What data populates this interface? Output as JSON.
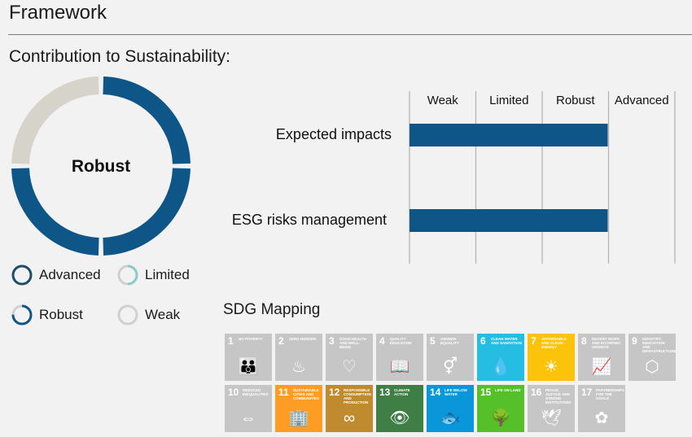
{
  "header": {
    "title": "Framework"
  },
  "contribution": {
    "title": "Contribution to Sustainability:",
    "center_label": "Robust",
    "filled_quarters": 3,
    "colors": {
      "filled": "#0e5588",
      "empty": "#d6d3cb"
    }
  },
  "legend": [
    {
      "label": "Advanced",
      "stroke": "#1f4e6b",
      "fill_fraction": 1.0
    },
    {
      "label": "Limited",
      "stroke": "#8ec9cc",
      "fill_fraction": 0.5
    },
    {
      "label": "Robust",
      "stroke": "#0e5588",
      "fill_fraction": 0.75
    },
    {
      "label": "Weak",
      "stroke": "#d6d3cb",
      "fill_fraction": 0.25
    }
  ],
  "chart_data": {
    "type": "bar",
    "orientation": "horizontal",
    "levels": [
      "Weak",
      "Limited",
      "Robust",
      "Advanced"
    ],
    "categories": [
      "Expected impacts",
      "ESG risks management"
    ],
    "values": [
      "Robust",
      "Robust"
    ],
    "bar_color": "#0e5588"
  },
  "sdg": {
    "title": "SDG Mapping",
    "tiles": [
      {
        "num": "1",
        "label": "No poverty",
        "icon": "👪",
        "color": "#c6c6c6"
      },
      {
        "num": "2",
        "label": "Zero hunger",
        "icon": "♨",
        "color": "#c6c6c6"
      },
      {
        "num": "3",
        "label": "Good health and well-being",
        "icon": "♡",
        "color": "#c6c6c6"
      },
      {
        "num": "4",
        "label": "Quality education",
        "icon": "📖",
        "color": "#c6c6c6"
      },
      {
        "num": "5",
        "label": "Gender equality",
        "icon": "⚥",
        "color": "#c6c6c6"
      },
      {
        "num": "6",
        "label": "Clean water and sanitation",
        "icon": "💧",
        "color": "#26bde2"
      },
      {
        "num": "7",
        "label": "Affordable and clean energy",
        "icon": "☀",
        "color": "#fcc30b"
      },
      {
        "num": "8",
        "label": "Decent work and economic growth",
        "icon": "📈",
        "color": "#c6c6c6"
      },
      {
        "num": "9",
        "label": "Industry, innovation and infrastructure",
        "icon": "⬡",
        "color": "#c6c6c6"
      },
      {
        "num": "10",
        "label": "Reduced inequalities",
        "icon": "⇔",
        "color": "#c6c6c6"
      },
      {
        "num": "11",
        "label": "Sustainable cities and communities",
        "icon": "🏢",
        "color": "#fd9d24"
      },
      {
        "num": "12",
        "label": "Responsible consumption and production",
        "icon": "∞",
        "color": "#bf8b2e"
      },
      {
        "num": "13",
        "label": "Climate action",
        "icon": "👁",
        "color": "#3f7e44"
      },
      {
        "num": "14",
        "label": "Life below water",
        "icon": "🐟",
        "color": "#0a97d9"
      },
      {
        "num": "15",
        "label": "Life on land",
        "icon": "🌳",
        "color": "#56c02b"
      },
      {
        "num": "16",
        "label": "Peace, justice and strong institutions",
        "icon": "🕊",
        "color": "#c6c6c6"
      },
      {
        "num": "17",
        "label": "Partnerships for the goals",
        "icon": "✿",
        "color": "#c6c6c6"
      }
    ]
  }
}
